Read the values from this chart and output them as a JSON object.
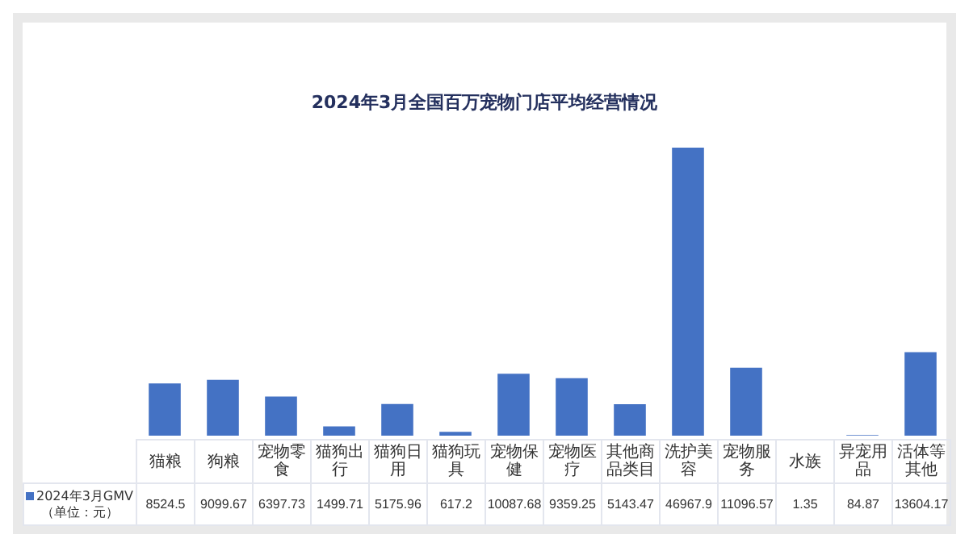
{
  "chart_data": {
    "type": "bar",
    "title": "2024年3月全国百万宠物门店平均经营情况",
    "categories": [
      "猫粮",
      "狗粮",
      "宠物零食",
      "猫狗出行",
      "猫狗日用",
      "猫狗玩具",
      "宠物保健",
      "宠物医疗",
      "其他商品类目",
      "洗护美容",
      "宠物服务",
      "水族",
      "异宠用品",
      "活体等其他"
    ],
    "series": [
      {
        "name": "2024年3月GMV（单位：元）",
        "color": "#4472c4",
        "values": [
          8524.5,
          9099.67,
          6397.73,
          1499.71,
          5175.96,
          617.2,
          10087.68,
          9359.25,
          5143.47,
          46967.9,
          11096.57,
          1.35,
          84.87,
          13604.17
        ]
      }
    ],
    "value_labels": [
      "8524.5",
      "9099.67",
      "6397.73",
      "1499.71",
      "5175.96",
      "617.2",
      "10087.68",
      "9359.25",
      "5143.47",
      "46967.9",
      "11096.57",
      "1.35",
      "84.87",
      "13604.17"
    ],
    "data_labels": true
  }
}
